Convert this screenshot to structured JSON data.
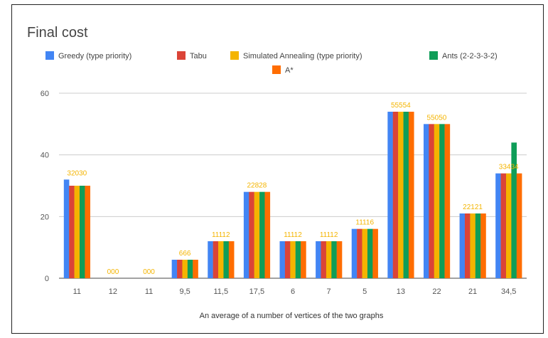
{
  "chart_data": {
    "type": "bar",
    "title": "Final cost",
    "xlabel": "An average of a number of vertices of the two graphs",
    "ylabel": "",
    "ylim": [
      0,
      60
    ],
    "yticks": [
      0,
      20,
      40,
      60
    ],
    "grid": true,
    "legend_position": "top",
    "categories": [
      "11",
      "12",
      "11",
      "9,5",
      "11,5",
      "17,5",
      "6",
      "7",
      "5",
      "13",
      "22",
      "21",
      "34,5"
    ],
    "series": [
      {
        "name": "Greedy (type priority)",
        "color": "#4285f4",
        "values": [
          32,
          0,
          0,
          6,
          12,
          28,
          12,
          12,
          16,
          54,
          50,
          21,
          34
        ]
      },
      {
        "name": "Tabu",
        "color": "#db4437",
        "values": [
          30,
          0,
          0,
          6,
          12,
          28,
          12,
          12,
          16,
          54,
          50,
          21,
          34
        ]
      },
      {
        "name": "Simulated Annealing (type priority)",
        "color": "#f4b400",
        "values": [
          30,
          0,
          0,
          6,
          12,
          28,
          12,
          12,
          16,
          54,
          50,
          21,
          34
        ]
      },
      {
        "name": "Ants (2-2-3-3-2)",
        "color": "#0f9d58",
        "values": [
          30,
          0,
          0,
          6,
          12,
          28,
          12,
          12,
          16,
          54,
          50,
          21,
          44
        ]
      },
      {
        "name": "A*",
        "color": "#ff6d01",
        "values": [
          30,
          0,
          0,
          6,
          12,
          28,
          12,
          12,
          16,
          54,
          50,
          21,
          34
        ]
      }
    ],
    "data_labels": [
      "32030",
      "000",
      "000",
      "666",
      "11112",
      "22828",
      "11112",
      "11112",
      "11116",
      "55554",
      "55050",
      "22121",
      "33434"
    ]
  }
}
